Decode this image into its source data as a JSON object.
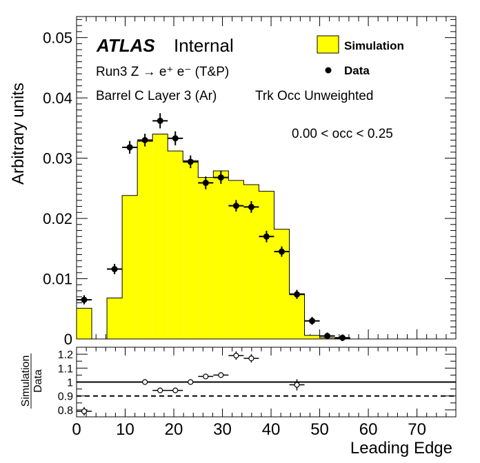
{
  "chart_data": [
    {
      "type": "histogram",
      "ylabel": "Arbitrary units",
      "xlim": [
        0,
        78
      ],
      "ylim": [
        0,
        0.0535
      ],
      "yticks": [
        {
          "v": 0,
          "label": "0"
        },
        {
          "v": 0.01,
          "label": "0.01"
        },
        {
          "v": 0.02,
          "label": "0.02"
        },
        {
          "v": 0.03,
          "label": "0.03"
        },
        {
          "v": 0.04,
          "label": "0.04"
        },
        {
          "v": 0.05,
          "label": "0.05"
        }
      ],
      "annotations": {
        "atlas": "ATLAS",
        "internal": "Internal",
        "process": "Run3 Z → e⁺ e⁻ (T&P)",
        "region": "Barrel C Layer 3 (Ar)",
        "weighting": "Trk Occ Unweighted",
        "selection": "0.00 < occ < 0.25"
      },
      "legend": {
        "position": "top-right",
        "simulation": "Simulation",
        "data": "Data"
      },
      "series": [
        {
          "name": "Simulation",
          "kind": "filled-step",
          "color": "#ffff00",
          "bins": [
            {
              "x0": 0.0,
              "x1": 3.125,
              "y": 0.0051
            },
            {
              "x0": 3.125,
              "x1": 6.25,
              "y": 0.0
            },
            {
              "x0": 6.25,
              "x1": 9.375,
              "y": 0.0068
            },
            {
              "x0": 9.375,
              "x1": 12.5,
              "y": 0.0238
            },
            {
              "x0": 12.5,
              "x1": 15.625,
              "y": 0.0328
            },
            {
              "x0": 15.625,
              "x1": 18.75,
              "y": 0.034
            },
            {
              "x0": 18.75,
              "x1": 21.875,
              "y": 0.0312
            },
            {
              "x0": 21.875,
              "x1": 25.0,
              "y": 0.0296
            },
            {
              "x0": 25.0,
              "x1": 28.125,
              "y": 0.0268
            },
            {
              "x0": 28.125,
              "x1": 31.25,
              "y": 0.0279
            },
            {
              "x0": 31.25,
              "x1": 34.375,
              "y": 0.0263
            },
            {
              "x0": 34.375,
              "x1": 37.5,
              "y": 0.0256
            },
            {
              "x0": 37.5,
              "x1": 40.625,
              "y": 0.0245
            },
            {
              "x0": 40.625,
              "x1": 43.75,
              "y": 0.0182
            },
            {
              "x0": 43.75,
              "x1": 46.875,
              "y": 0.0075
            },
            {
              "x0": 46.875,
              "x1": 50.0,
              "y": 0.0006
            },
            {
              "x0": 50.0,
              "x1": 53.125,
              "y": 0.0002
            },
            {
              "x0": 53.125,
              "x1": 56.25,
              "y": 0.0001
            }
          ]
        },
        {
          "name": "Data",
          "kind": "points",
          "xerr": 1.5625,
          "points": [
            {
              "x": 1.5625,
              "y": 0.0065,
              "e": 0.0003
            },
            {
              "x": 7.8125,
              "y": 0.0116,
              "e": 0.0004
            },
            {
              "x": 10.9375,
              "y": 0.0318,
              "e": 0.0006
            },
            {
              "x": 14.0625,
              "y": 0.033,
              "e": 0.0006
            },
            {
              "x": 17.1875,
              "y": 0.0362,
              "e": 0.0008
            },
            {
              "x": 20.3125,
              "y": 0.0333,
              "e": 0.0007
            },
            {
              "x": 23.4375,
              "y": 0.0294,
              "e": 0.0006
            },
            {
              "x": 26.5625,
              "y": 0.0259,
              "e": 0.0006
            },
            {
              "x": 29.6875,
              "y": 0.0268,
              "e": 0.0006
            },
            {
              "x": 32.8125,
              "y": 0.0221,
              "e": 0.0005
            },
            {
              "x": 35.9375,
              "y": 0.0219,
              "e": 0.0005
            },
            {
              "x": 39.0625,
              "y": 0.017,
              "e": 0.0005
            },
            {
              "x": 42.1875,
              "y": 0.0145,
              "e": 0.0004
            },
            {
              "x": 45.3125,
              "y": 0.0074,
              "e": 0.0003
            },
            {
              "x": 48.4375,
              "y": 0.003,
              "e": 0.0002
            },
            {
              "x": 51.5625,
              "y": 0.0005,
              "e": 0.0001
            },
            {
              "x": 54.6875,
              "y": 0.0002,
              "e": 0.0001
            }
          ]
        }
      ]
    },
    {
      "type": "ratio",
      "ylabel_top": "Simulation",
      "ylabel_bottom": "Data",
      "xlabel": "Leading Edge",
      "xlim": [
        0,
        78
      ],
      "ylim": [
        0.75,
        1.25
      ],
      "reference_lines": [
        1.0,
        0.9
      ],
      "yticks": [
        {
          "v": 0.8,
          "label": "0.8"
        },
        {
          "v": 0.9,
          "label": "0.9"
        },
        {
          "v": 1.0,
          "label": "1"
        },
        {
          "v": 1.1,
          "label": "1.1"
        },
        {
          "v": 1.2,
          "label": "1.2"
        }
      ],
      "xticks": [
        {
          "v": 0,
          "label": "0"
        },
        {
          "v": 10,
          "label": "10"
        },
        {
          "v": 20,
          "label": "20"
        },
        {
          "v": 30,
          "label": "30"
        },
        {
          "v": 40,
          "label": "40"
        },
        {
          "v": 50,
          "label": "50"
        },
        {
          "v": 60,
          "label": "60"
        },
        {
          "v": 70,
          "label": "70"
        }
      ],
      "series": [
        {
          "name": "Simulation / Data",
          "xerr": 1.5625,
          "points": [
            {
              "x": 1.5625,
              "y": 0.79,
              "e": 0.03
            },
            {
              "x": 14.0625,
              "y": 1.0,
              "e": 0.02
            },
            {
              "x": 17.1875,
              "y": 0.94,
              "e": 0.02
            },
            {
              "x": 20.3125,
              "y": 0.94,
              "e": 0.02
            },
            {
              "x": 23.4375,
              "y": 1.0,
              "e": 0.02
            },
            {
              "x": 26.5625,
              "y": 1.04,
              "e": 0.02
            },
            {
              "x": 29.6875,
              "y": 1.05,
              "e": 0.02
            },
            {
              "x": 32.8125,
              "y": 1.19,
              "e": 0.03
            },
            {
              "x": 35.9375,
              "y": 1.17,
              "e": 0.03
            },
            {
              "x": 45.3125,
              "y": 0.98,
              "e": 0.04
            }
          ]
        }
      ]
    }
  ]
}
